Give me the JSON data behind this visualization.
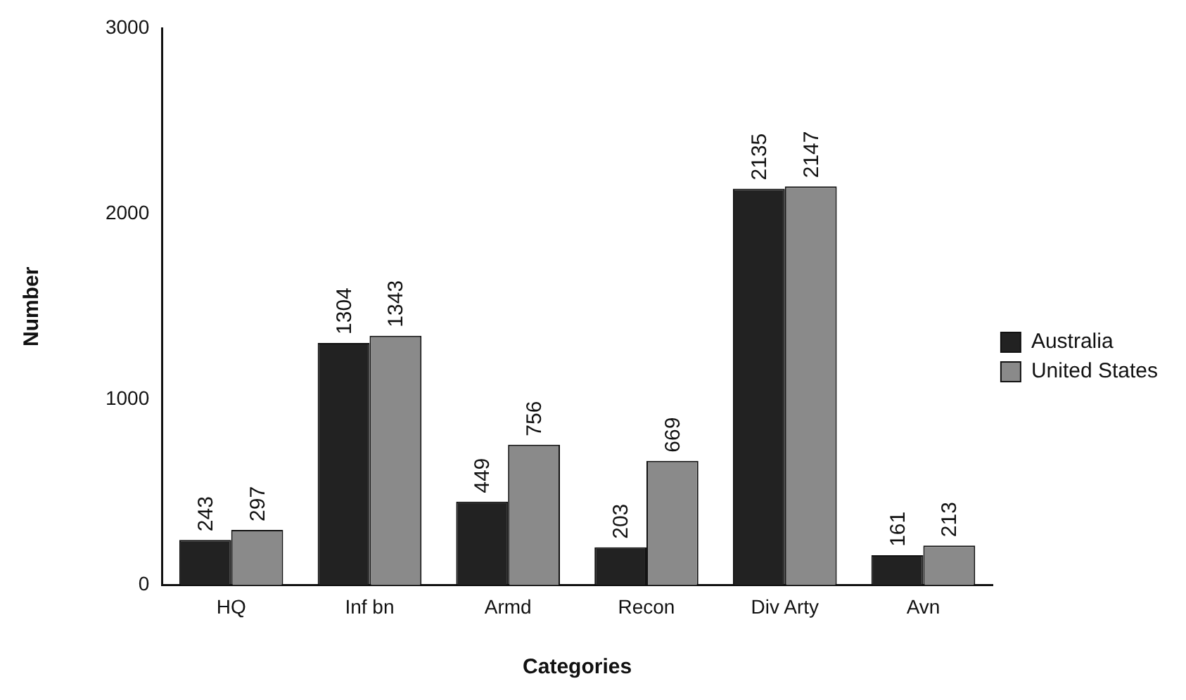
{
  "chart_data": {
    "type": "bar",
    "xlabel": "Categories",
    "ylabel": "Number",
    "categories": [
      "HQ",
      "Inf bn",
      "Armd",
      "Recon",
      "Div Arty",
      "Avn"
    ],
    "series": [
      {
        "name": "Australia",
        "color": "#222222",
        "values": [
          243,
          1304,
          449,
          203,
          2135,
          161
        ]
      },
      {
        "name": "United States",
        "color": "#8a8a8a",
        "values": [
          297,
          1343,
          756,
          669,
          2147,
          213
        ]
      }
    ],
    "ylim": [
      0,
      3000
    ],
    "yticks": [
      0,
      1000,
      2000,
      3000
    ],
    "grid": false,
    "legend": "right",
    "data_labels": true
  }
}
